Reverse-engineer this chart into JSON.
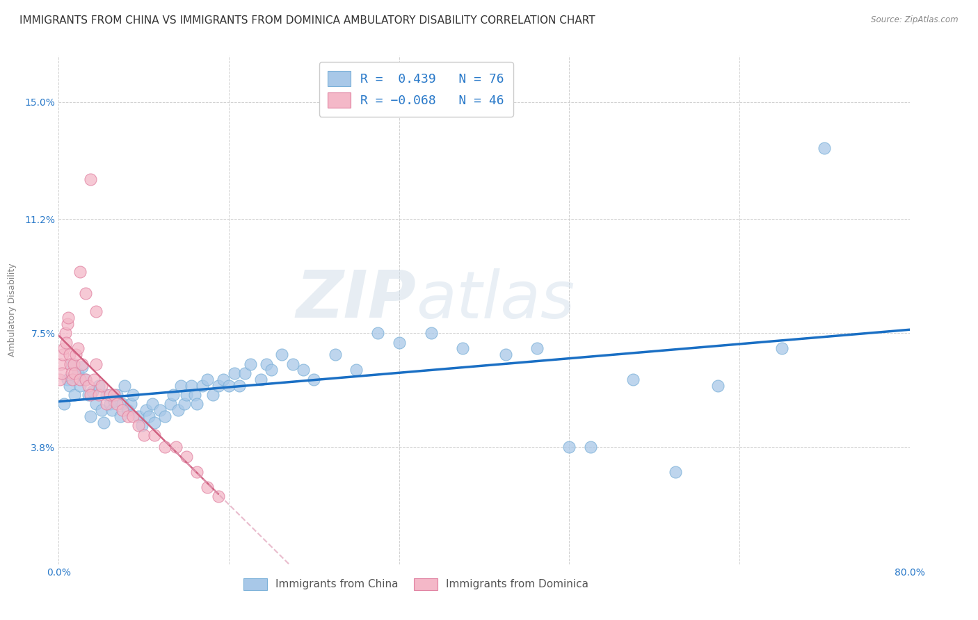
{
  "title": "IMMIGRANTS FROM CHINA VS IMMIGRANTS FROM DOMINICA AMBULATORY DISABILITY CORRELATION CHART",
  "source": "Source: ZipAtlas.com",
  "ylabel": "Ambulatory Disability",
  "xlim": [
    0.0,
    0.8
  ],
  "ylim": [
    0.0,
    0.165
  ],
  "yticks": [
    0.038,
    0.075,
    0.112,
    0.15
  ],
  "ytick_labels": [
    "3.8%",
    "7.5%",
    "11.2%",
    "15.0%"
  ],
  "xticks": [
    0.0,
    0.16,
    0.32,
    0.48,
    0.64,
    0.8
  ],
  "xtick_labels": [
    "0.0%",
    "",
    "",
    "",
    "",
    "80.0%"
  ],
  "china_color": "#a8c8e8",
  "china_edge_color": "#7ab0d8",
  "dominica_color": "#f4b8c8",
  "dominica_edge_color": "#e080a0",
  "china_line_color": "#1a6fc4",
  "dominica_solid_color": "#d06080",
  "dominica_dash_color": "#e0a0b8",
  "legend_text_color": "#2979c9",
  "background_color": "#ffffff",
  "china_R": 0.439,
  "china_N": 76,
  "dominica_R": -0.068,
  "dominica_N": 46,
  "china_x": [
    0.005,
    0.008,
    0.01,
    0.012,
    0.015,
    0.018,
    0.02,
    0.022,
    0.025,
    0.028,
    0.03,
    0.032,
    0.035,
    0.038,
    0.04,
    0.042,
    0.045,
    0.048,
    0.05,
    0.052,
    0.055,
    0.058,
    0.06,
    0.062,
    0.065,
    0.068,
    0.07,
    0.075,
    0.078,
    0.082,
    0.085,
    0.088,
    0.09,
    0.095,
    0.1,
    0.105,
    0.108,
    0.112,
    0.115,
    0.118,
    0.12,
    0.125,
    0.128,
    0.13,
    0.135,
    0.14,
    0.145,
    0.15,
    0.155,
    0.16,
    0.165,
    0.17,
    0.175,
    0.18,
    0.19,
    0.195,
    0.2,
    0.21,
    0.22,
    0.23,
    0.24,
    0.26,
    0.28,
    0.3,
    0.32,
    0.35,
    0.38,
    0.42,
    0.45,
    0.48,
    0.5,
    0.54,
    0.58,
    0.62,
    0.68,
    0.72
  ],
  "china_y": [
    0.052,
    0.06,
    0.058,
    0.065,
    0.055,
    0.062,
    0.058,
    0.064,
    0.06,
    0.055,
    0.048,
    0.056,
    0.052,
    0.058,
    0.05,
    0.046,
    0.055,
    0.052,
    0.05,
    0.053,
    0.055,
    0.048,
    0.052,
    0.058,
    0.05,
    0.052,
    0.055,
    0.048,
    0.045,
    0.05,
    0.048,
    0.052,
    0.046,
    0.05,
    0.048,
    0.052,
    0.055,
    0.05,
    0.058,
    0.052,
    0.055,
    0.058,
    0.055,
    0.052,
    0.058,
    0.06,
    0.055,
    0.058,
    0.06,
    0.058,
    0.062,
    0.058,
    0.062,
    0.065,
    0.06,
    0.065,
    0.063,
    0.068,
    0.065,
    0.063,
    0.06,
    0.068,
    0.063,
    0.075,
    0.072,
    0.075,
    0.07,
    0.068,
    0.07,
    0.038,
    0.038,
    0.06,
    0.03,
    0.058,
    0.07,
    0.135
  ],
  "dominica_x": [
    0.001,
    0.002,
    0.003,
    0.004,
    0.005,
    0.006,
    0.007,
    0.008,
    0.009,
    0.01,
    0.011,
    0.012,
    0.013,
    0.014,
    0.015,
    0.016,
    0.018,
    0.02,
    0.022,
    0.025,
    0.028,
    0.03,
    0.033,
    0.035,
    0.038,
    0.04,
    0.045,
    0.048,
    0.052,
    0.055,
    0.06,
    0.065,
    0.07,
    0.075,
    0.08,
    0.09,
    0.1,
    0.11,
    0.12,
    0.13,
    0.14,
    0.15,
    0.02,
    0.025,
    0.03,
    0.035
  ],
  "dominica_y": [
    0.06,
    0.065,
    0.062,
    0.068,
    0.07,
    0.075,
    0.072,
    0.078,
    0.08,
    0.068,
    0.065,
    0.062,
    0.06,
    0.065,
    0.062,
    0.068,
    0.07,
    0.06,
    0.065,
    0.06,
    0.058,
    0.055,
    0.06,
    0.065,
    0.055,
    0.058,
    0.052,
    0.055,
    0.055,
    0.052,
    0.05,
    0.048,
    0.048,
    0.045,
    0.042,
    0.042,
    0.038,
    0.038,
    0.035,
    0.03,
    0.025,
    0.022,
    0.095,
    0.088,
    0.125,
    0.082
  ],
  "dominica_outlier_x": [
    0.0
  ],
  "dominica_outlier_y": [
    0.125
  ],
  "watermark_zip": "ZIP",
  "watermark_atlas": "atlas",
  "title_fontsize": 11,
  "axis_fontsize": 9,
  "tick_fontsize": 10
}
